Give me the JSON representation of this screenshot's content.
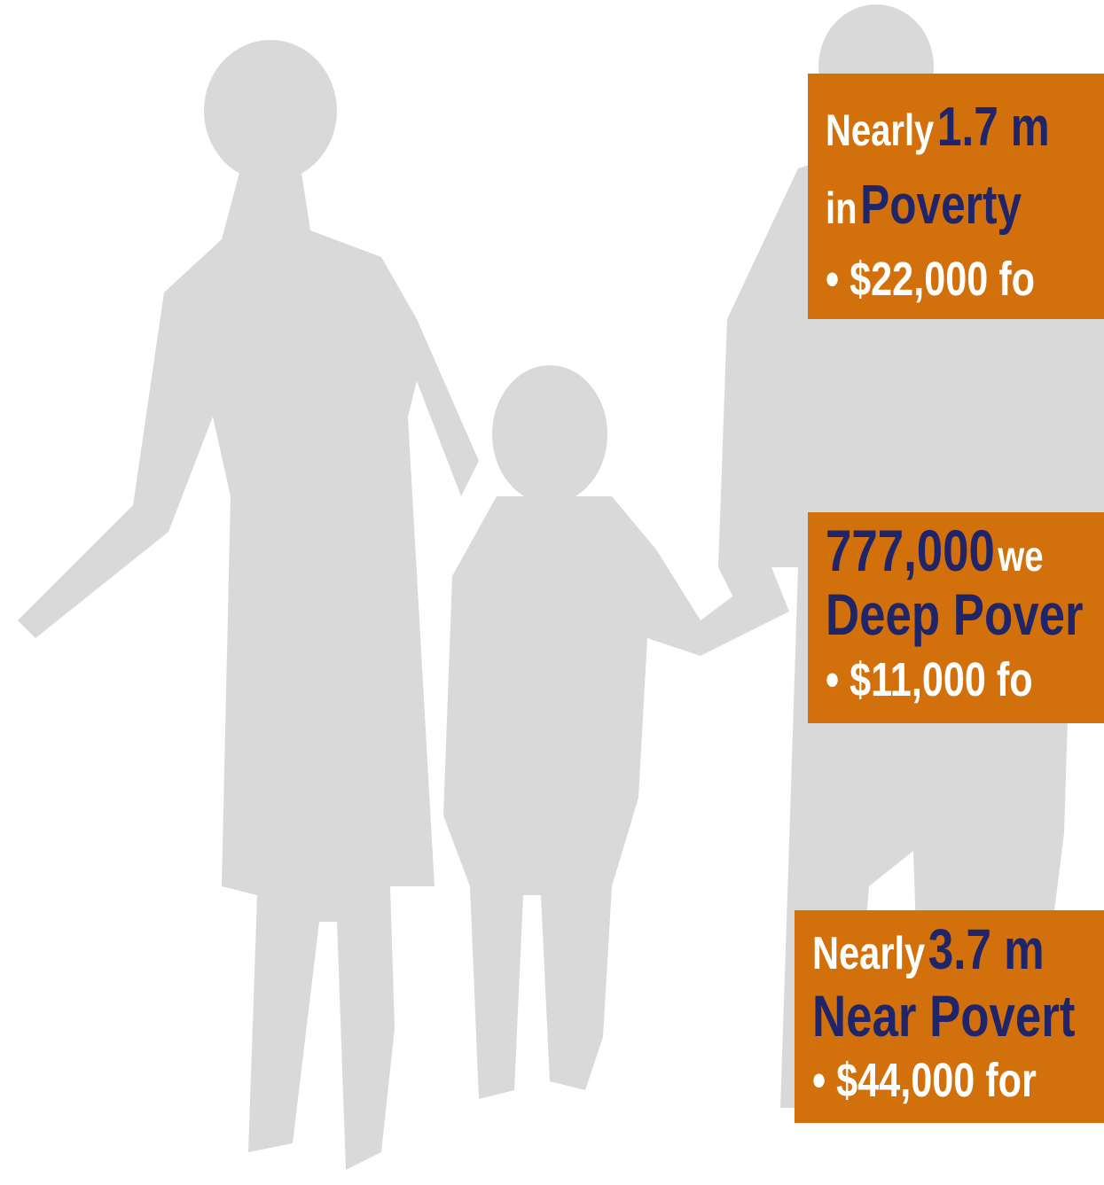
{
  "panels": [
    {
      "lines": [
        [
          "Nearly",
          "1.7 m"
        ],
        [
          "in",
          "Poverty"
        ],
        [
          "• $22,000 fo"
        ]
      ]
    },
    {
      "lines": [
        [
          "777,000",
          "we"
        ],
        [
          "Deep Pover"
        ],
        [
          "• $11,000 fo"
        ]
      ]
    },
    {
      "lines": [
        [
          "Nearly",
          "3.7 m"
        ],
        [
          "Near Povert"
        ],
        [
          "• $44,000 for"
        ]
      ]
    }
  ]
}
